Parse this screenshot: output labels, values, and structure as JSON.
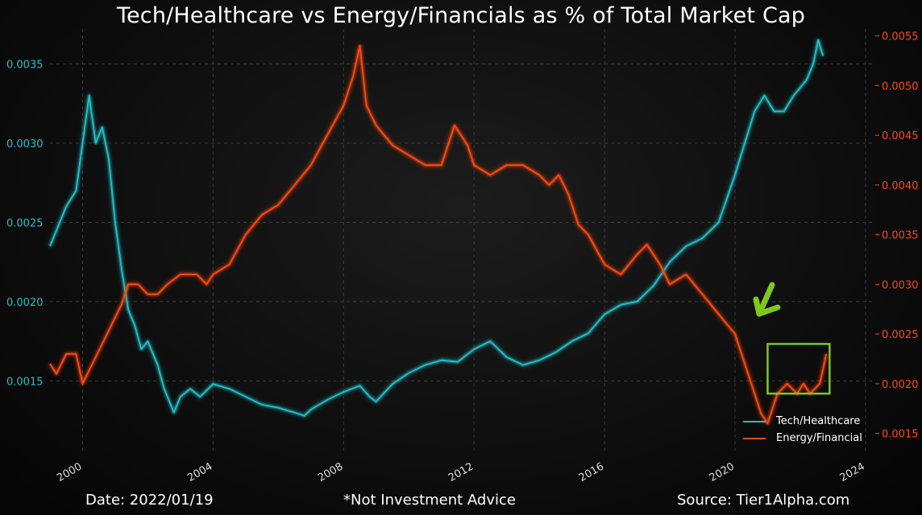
{
  "page": {
    "title": "Tech/Healthcare vs Energy/Financials as % of Total Market Cap",
    "footer_date": "Date: 2022/01/19",
    "footer_note": "*Not Investment Advice",
    "footer_source": "Source: Tier1Alpha.com"
  },
  "colors": {
    "tech": "#22c1c9",
    "energy": "#ff4a12",
    "highlight": "#7ec81e",
    "grid": "#3a3a3a"
  },
  "chart_data": {
    "type": "line",
    "title": "Tech/Healthcare vs Energy/Financials as % of Total Market Cap",
    "xlabel": "",
    "ylabel": "",
    "x_ticks": [
      "2000",
      "2004",
      "2008",
      "2012",
      "2016",
      "2020",
      "2024"
    ],
    "xlim": [
      1999.0,
      2024.3
    ],
    "y_left_ticks": [
      "0.0015",
      "0.0020",
      "0.0025",
      "0.0030",
      "0.0035"
    ],
    "y_left_lim": [
      0.00105,
      0.00372
    ],
    "y_right_ticks": [
      "0.0015",
      "0.0020",
      "0.0025",
      "0.0030",
      "0.0035",
      "0.0040",
      "0.0045",
      "0.0050",
      "0.0055"
    ],
    "y_right_lim": [
      0.00131,
      0.00557
    ],
    "grid": true,
    "legend_position": "bottom-right",
    "series": [
      {
        "name": "Tech/Healthcare",
        "axis": "left",
        "color": "#22c1c9",
        "points": [
          [
            1999.0,
            0.00235
          ],
          [
            1999.2,
            0.00245
          ],
          [
            1999.5,
            0.0026
          ],
          [
            1999.8,
            0.0027
          ],
          [
            2000.0,
            0.003
          ],
          [
            2000.2,
            0.0033
          ],
          [
            2000.4,
            0.003
          ],
          [
            2000.6,
            0.0031
          ],
          [
            2000.8,
            0.0029
          ],
          [
            2000.9,
            0.0027
          ],
          [
            2001.0,
            0.0025
          ],
          [
            2001.2,
            0.0022
          ],
          [
            2001.4,
            0.00195
          ],
          [
            2001.6,
            0.00185
          ],
          [
            2001.8,
            0.0017
          ],
          [
            2002.0,
            0.00175
          ],
          [
            2002.3,
            0.0016
          ],
          [
            2002.5,
            0.00145
          ],
          [
            2002.8,
            0.0013
          ],
          [
            2003.0,
            0.0014
          ],
          [
            2003.3,
            0.00145
          ],
          [
            2003.6,
            0.0014
          ],
          [
            2004.0,
            0.00148
          ],
          [
            2004.5,
            0.00145
          ],
          [
            2005.0,
            0.0014
          ],
          [
            2005.5,
            0.00135
          ],
          [
            2006.0,
            0.00133
          ],
          [
            2006.5,
            0.0013
          ],
          [
            2006.8,
            0.00128
          ],
          [
            2007.0,
            0.00132
          ],
          [
            2007.5,
            0.00138
          ],
          [
            2008.0,
            0.00143
          ],
          [
            2008.5,
            0.00147
          ],
          [
            2008.8,
            0.0014
          ],
          [
            2009.0,
            0.00137
          ],
          [
            2009.5,
            0.00148
          ],
          [
            2010.0,
            0.00155
          ],
          [
            2010.5,
            0.0016
          ],
          [
            2011.0,
            0.00163
          ],
          [
            2011.5,
            0.00162
          ],
          [
            2012.0,
            0.0017
          ],
          [
            2012.5,
            0.00175
          ],
          [
            2013.0,
            0.00165
          ],
          [
            2013.5,
            0.0016
          ],
          [
            2014.0,
            0.00163
          ],
          [
            2014.5,
            0.00168
          ],
          [
            2015.0,
            0.00175
          ],
          [
            2015.5,
            0.0018
          ],
          [
            2016.0,
            0.00192
          ],
          [
            2016.5,
            0.00198
          ],
          [
            2017.0,
            0.002
          ],
          [
            2017.5,
            0.0021
          ],
          [
            2018.0,
            0.00225
          ],
          [
            2018.5,
            0.00235
          ],
          [
            2019.0,
            0.0024
          ],
          [
            2019.5,
            0.0025
          ],
          [
            2020.0,
            0.0028
          ],
          [
            2020.3,
            0.003
          ],
          [
            2020.6,
            0.0032
          ],
          [
            2020.9,
            0.0033
          ],
          [
            2021.2,
            0.0032
          ],
          [
            2021.5,
            0.0032
          ],
          [
            2021.8,
            0.0033
          ],
          [
            2022.0,
            0.00335
          ],
          [
            2022.2,
            0.0034
          ],
          [
            2022.4,
            0.0035
          ],
          [
            2022.55,
            0.00365
          ],
          [
            2022.7,
            0.00355
          ]
        ]
      },
      {
        "name": "Energy/Financial",
        "axis": "right",
        "color": "#ff4a12",
        "points": [
          [
            1999.0,
            0.0022
          ],
          [
            1999.2,
            0.0021
          ],
          [
            1999.5,
            0.0023
          ],
          [
            1999.8,
            0.0023
          ],
          [
            2000.0,
            0.002
          ],
          [
            2000.3,
            0.0022
          ],
          [
            2000.6,
            0.0024
          ],
          [
            2000.9,
            0.0026
          ],
          [
            2001.2,
            0.0028
          ],
          [
            2001.4,
            0.003
          ],
          [
            2001.7,
            0.003
          ],
          [
            2002.0,
            0.0029
          ],
          [
            2002.3,
            0.0029
          ],
          [
            2002.6,
            0.003
          ],
          [
            2003.0,
            0.0031
          ],
          [
            2003.5,
            0.0031
          ],
          [
            2003.8,
            0.003
          ],
          [
            2004.0,
            0.0031
          ],
          [
            2004.5,
            0.0032
          ],
          [
            2005.0,
            0.0035
          ],
          [
            2005.5,
            0.0037
          ],
          [
            2006.0,
            0.0038
          ],
          [
            2006.5,
            0.004
          ],
          [
            2007.0,
            0.0042
          ],
          [
            2007.5,
            0.0045
          ],
          [
            2008.0,
            0.0048
          ],
          [
            2008.3,
            0.0051
          ],
          [
            2008.5,
            0.0054
          ],
          [
            2008.7,
            0.0048
          ],
          [
            2009.0,
            0.0046
          ],
          [
            2009.5,
            0.0044
          ],
          [
            2010.0,
            0.0043
          ],
          [
            2010.5,
            0.0042
          ],
          [
            2011.0,
            0.0042
          ],
          [
            2011.4,
            0.0046
          ],
          [
            2011.8,
            0.0044
          ],
          [
            2012.0,
            0.0042
          ],
          [
            2012.5,
            0.0041
          ],
          [
            2013.0,
            0.0042
          ],
          [
            2013.5,
            0.0042
          ],
          [
            2014.0,
            0.0041
          ],
          [
            2014.3,
            0.004
          ],
          [
            2014.6,
            0.0041
          ],
          [
            2014.9,
            0.0039
          ],
          [
            2015.2,
            0.0036
          ],
          [
            2015.5,
            0.0035
          ],
          [
            2016.0,
            0.0032
          ],
          [
            2016.5,
            0.0031
          ],
          [
            2017.0,
            0.0033
          ],
          [
            2017.3,
            0.0034
          ],
          [
            2017.7,
            0.0032
          ],
          [
            2018.0,
            0.003
          ],
          [
            2018.5,
            0.0031
          ],
          [
            2019.0,
            0.0029
          ],
          [
            2019.5,
            0.0027
          ],
          [
            2020.0,
            0.0025
          ],
          [
            2020.3,
            0.0022
          ],
          [
            2020.5,
            0.002
          ],
          [
            2020.8,
            0.0017
          ],
          [
            2021.0,
            0.0016
          ],
          [
            2021.3,
            0.0019
          ],
          [
            2021.6,
            0.002
          ],
          [
            2021.9,
            0.0019
          ],
          [
            2022.1,
            0.002
          ],
          [
            2022.3,
            0.0019
          ],
          [
            2022.6,
            0.002
          ],
          [
            2022.8,
            0.0023
          ]
        ]
      }
    ],
    "annotations": [
      {
        "type": "rectangle",
        "x0": 2021.0,
        "x1": 2022.9,
        "y0": 0.0019,
        "y1": 0.0024,
        "axis": "right",
        "color": "#7ec81e"
      },
      {
        "type": "arrow",
        "direction": "down-left",
        "color": "#7ec81e"
      }
    ]
  }
}
